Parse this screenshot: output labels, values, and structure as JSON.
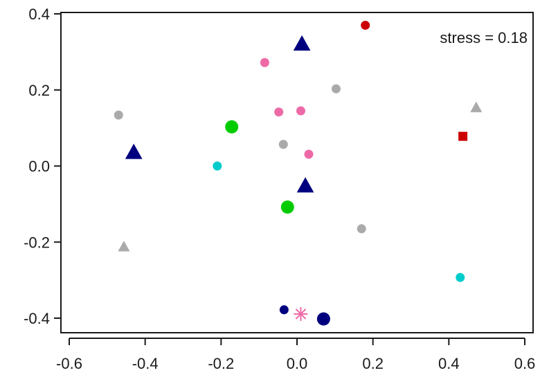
{
  "chart_data": {
    "type": "scatter",
    "title": "",
    "annotation": "stress = 0.18",
    "xlim": [
      -0.62,
      0.62
    ],
    "ylim": [
      -0.43,
      0.4
    ],
    "x_ticks": [
      -0.6,
      -0.4,
      -0.2,
      0.0,
      0.2,
      0.4,
      0.6
    ],
    "x_tick_labels": [
      "-0.6",
      "-0.4",
      "-0.2",
      "0.0",
      "0.2",
      "0.4",
      "0.6"
    ],
    "y_ticks": [
      -0.4,
      -0.2,
      0.0,
      0.2,
      0.4
    ],
    "y_tick_labels": [
      "-0.4",
      "-0.2",
      "0.0",
      "0.2",
      "0.4"
    ],
    "grid": false,
    "points": [
      {
        "x": 0.18,
        "y": 0.37,
        "shape": "circle",
        "color": "#cc0000",
        "size": "small"
      },
      {
        "x": 0.013,
        "y": 0.32,
        "shape": "triangle",
        "color": "#00007f",
        "size": "large"
      },
      {
        "x": -0.085,
        "y": 0.272,
        "shape": "circle",
        "color": "#ee6aa7",
        "size": "small"
      },
      {
        "x": 0.103,
        "y": 0.203,
        "shape": "circle",
        "color": "#aaaaaa",
        "size": "small"
      },
      {
        "x": -0.47,
        "y": 0.134,
        "shape": "circle",
        "color": "#aaaaaa",
        "size": "small"
      },
      {
        "x": -0.048,
        "y": 0.142,
        "shape": "circle",
        "color": "#ee6aa7",
        "size": "small"
      },
      {
        "x": 0.01,
        "y": 0.145,
        "shape": "circle",
        "color": "#ee6aa7",
        "size": "small"
      },
      {
        "x": 0.472,
        "y": 0.153,
        "shape": "triangle",
        "color": "#aaaaaa",
        "size": "small"
      },
      {
        "x": -0.172,
        "y": 0.103,
        "shape": "circle",
        "color": "#00cc00",
        "size": "large"
      },
      {
        "x": 0.437,
        "y": 0.078,
        "shape": "square",
        "color": "#cc0000",
        "size": "small"
      },
      {
        "x": -0.036,
        "y": 0.057,
        "shape": "circle",
        "color": "#aaaaaa",
        "size": "small"
      },
      {
        "x": 0.031,
        "y": 0.031,
        "shape": "circle",
        "color": "#ee6aa7",
        "size": "small"
      },
      {
        "x": -0.43,
        "y": 0.035,
        "shape": "triangle",
        "color": "#00007f",
        "size": "large"
      },
      {
        "x": -0.21,
        "y": 0.0,
        "shape": "circle",
        "color": "#00cccc",
        "size": "small"
      },
      {
        "x": 0.022,
        "y": -0.053,
        "shape": "triangle",
        "color": "#00007f",
        "size": "large"
      },
      {
        "x": -0.025,
        "y": -0.108,
        "shape": "circle",
        "color": "#00cc00",
        "size": "large"
      },
      {
        "x": 0.17,
        "y": -0.165,
        "shape": "circle",
        "color": "#aaaaaa",
        "size": "small"
      },
      {
        "x": -0.456,
        "y": -0.213,
        "shape": "triangle",
        "color": "#aaaaaa",
        "size": "small"
      },
      {
        "x": 0.43,
        "y": -0.293,
        "shape": "circle",
        "color": "#00cccc",
        "size": "small"
      },
      {
        "x": -0.034,
        "y": -0.378,
        "shape": "circle",
        "color": "#00007f",
        "size": "small"
      },
      {
        "x": 0.01,
        "y": -0.389,
        "shape": "asterisk",
        "color": "#ee6aa7",
        "size": "large"
      },
      {
        "x": 0.07,
        "y": -0.402,
        "shape": "circle",
        "color": "#00007f",
        "size": "large"
      }
    ]
  }
}
